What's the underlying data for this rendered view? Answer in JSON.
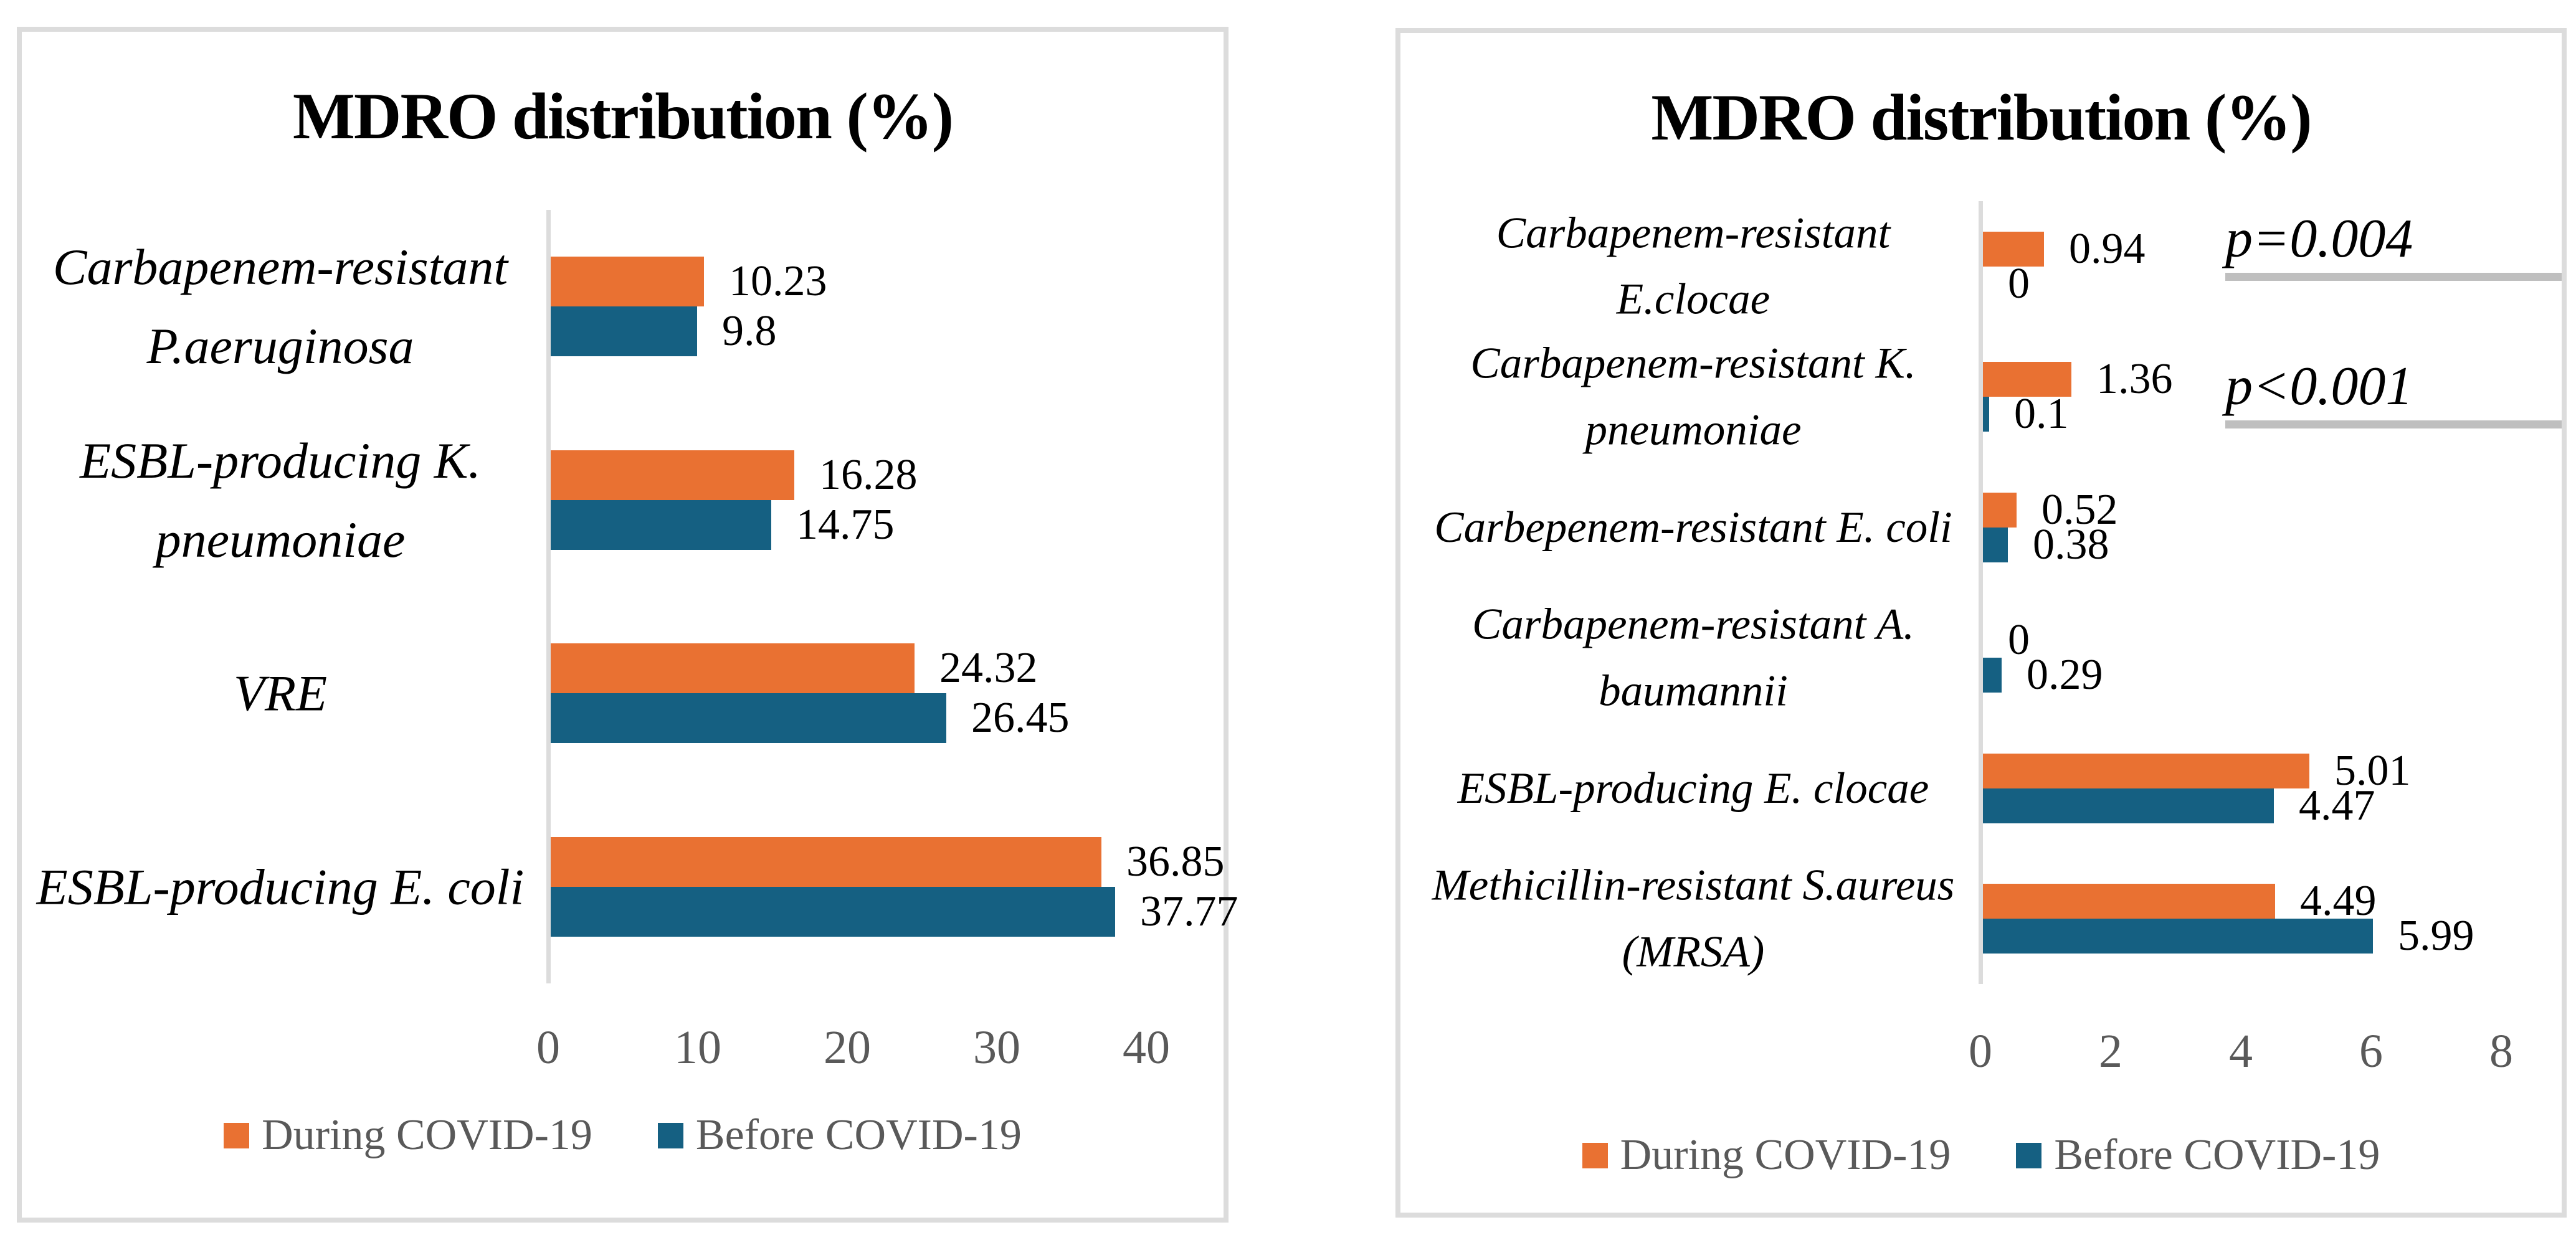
{
  "page": {
    "background": "#ffffff"
  },
  "colors": {
    "during": "#E97132",
    "before": "#156082",
    "axis_line": "#dcdcdc",
    "panel_border": "#dcdcdc",
    "tick_text": "#595959",
    "legend_text": "#595959",
    "annotation_underline": "#bfbfbf",
    "value_text": "#000000"
  },
  "legend": {
    "during": "During COVID-19",
    "before": "Before COVID-19"
  },
  "chart_data": [
    {
      "type": "bar",
      "orientation": "horizontal",
      "title": "MDRO distribution (%)",
      "xlabel": "",
      "ylabel": "",
      "xlim": [
        0,
        45
      ],
      "xticks": [
        0,
        10,
        20,
        30,
        40
      ],
      "grid": false,
      "legend_position": "bottom",
      "categories": [
        "Carbapenem-resistant P.aeruginosa",
        "ESBL-producing K. pneumoniae",
        "VRE",
        "ESBL-producing E. coli"
      ],
      "category_lines": [
        [
          "Carbapenem-resistant",
          "P.aeruginosa"
        ],
        [
          "ESBL-producing K.",
          "pneumoniae"
        ],
        [
          "VRE"
        ],
        [
          "ESBL-producing E. coli"
        ]
      ],
      "series": [
        {
          "name": "During COVID-19",
          "color": "#E97132",
          "values": [
            10.23,
            16.28,
            24.32,
            36.85
          ],
          "value_labels": [
            "10.23",
            "16.28",
            "24.32",
            "36.85"
          ]
        },
        {
          "name": "Before COVID-19",
          "color": "#156082",
          "values": [
            9.8,
            14.75,
            26.45,
            37.77
          ],
          "value_labels": [
            "9.8",
            "14.75",
            "26.45",
            "37.77"
          ]
        }
      ],
      "annotations": []
    },
    {
      "type": "bar",
      "orientation": "horizontal",
      "title": "MDRO distribution (%)",
      "xlabel": "",
      "ylabel": "",
      "xlim": [
        0,
        8.9
      ],
      "xticks": [
        0,
        2,
        4,
        6,
        8
      ],
      "grid": false,
      "legend_position": "bottom",
      "categories": [
        "Carbapenem-resistant E.clocae",
        "Carbapenem-resistant K. pneumoniae",
        "Carbepenem-resistant E. coli",
        "Carbapenem-resistant A. baumannii",
        "ESBL-producing E. clocae",
        "Methicillin-resistant S.aureus (MRSA)"
      ],
      "category_lines": [
        [
          "Carbapenem-resistant",
          "E.clocae"
        ],
        [
          "Carbapenem-resistant K.",
          "pneumoniae"
        ],
        [
          "Carbepenem-resistant E. coli"
        ],
        [
          "Carbapenem-resistant A.",
          "baumannii"
        ],
        [
          "ESBL-producing E. clocae"
        ],
        [
          "Methicillin-resistant S.aureus",
          "(MRSA)"
        ]
      ],
      "series": [
        {
          "name": "During COVID-19",
          "color": "#E97132",
          "values": [
            0.94,
            1.36,
            0.52,
            0,
            5.01,
            4.49
          ],
          "value_labels": [
            "0.94",
            "1.36",
            "0.52",
            "0",
            "5.01",
            "4.49"
          ]
        },
        {
          "name": "Before COVID-19",
          "color": "#156082",
          "values": [
            0,
            0.1,
            0.38,
            0.29,
            4.47,
            5.99
          ],
          "value_labels": [
            "0",
            "0.1",
            "0.38",
            "0.29",
            "4.47",
            "5.99"
          ]
        }
      ],
      "annotations": [
        {
          "text": "p=0.004",
          "row": 0
        },
        {
          "text": "p<0.001",
          "row": 1
        }
      ]
    }
  ]
}
